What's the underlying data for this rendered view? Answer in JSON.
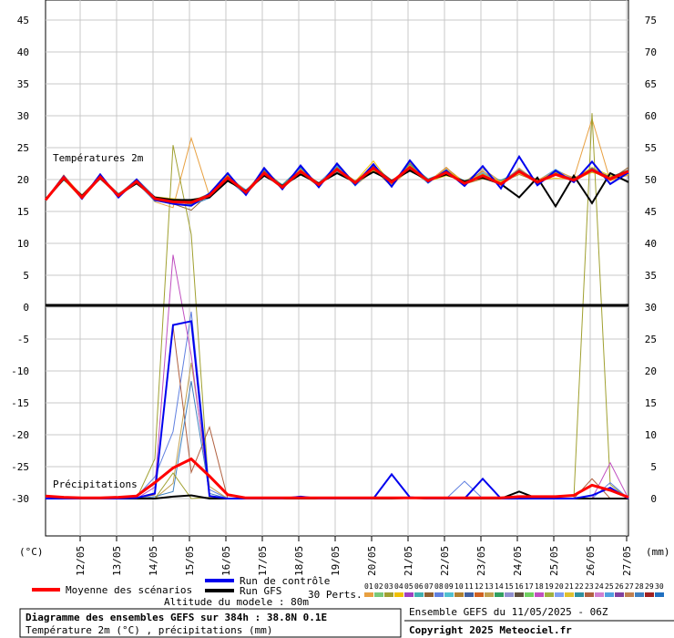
{
  "chart_data": {
    "type": "line",
    "title": "Diagramme des ensembles GEFS sur 384h : 38.8N 0.1E",
    "subtitle": "Température 2m (°C) , précipitations (mm)",
    "panel_labels": {
      "temperature": "Températures 2m",
      "precipitation": "Précipitations"
    },
    "left_axis": {
      "unit": "(°C)",
      "ticks": [
        45,
        40,
        35,
        30,
        25,
        20,
        15,
        10,
        5,
        0,
        -5,
        -10,
        -15,
        -20,
        -25,
        -30
      ],
      "range": [
        -30,
        45
      ]
    },
    "right_axis": {
      "unit": "(mm)",
      "ticks": [
        75,
        70,
        65,
        60,
        55,
        50,
        45,
        40,
        35,
        30,
        25,
        20,
        15,
        10,
        5,
        0
      ],
      "range": [
        0,
        75
      ]
    },
    "x_ticks": [
      "12/05",
      "13/05",
      "14/05",
      "15/05",
      "16/05",
      "17/05",
      "18/05",
      "19/05",
      "20/05",
      "21/05",
      "22/05",
      "23/05",
      "24/05",
      "25/05",
      "26/05",
      "27/05"
    ],
    "legend": {
      "mean": "Moyenne des scénarios",
      "control": "Run de contrôle",
      "gfs": "Run GFS",
      "perts_label": "30 Perts.",
      "perts_numbers": [
        "01",
        "02",
        "03",
        "04",
        "05",
        "06",
        "07",
        "08",
        "09",
        "10",
        "11",
        "12",
        "13",
        "14",
        "15",
        "16",
        "17",
        "18",
        "19",
        "20",
        "21",
        "22",
        "23",
        "24",
        "25",
        "26",
        "27",
        "28",
        "29",
        "30"
      ]
    },
    "altitude": "Altitude du modele : 80m",
    "run_info": "Ensemble GEFS du 11/05/2025 - 06Z",
    "copyright": "Copyright 2025 Meteociel.fr",
    "colors": {
      "mean": "#ff0000",
      "control": "#0000ee",
      "gfs": "#000000",
      "perts": [
        "#e8a040",
        "#78c878",
        "#a0a030",
        "#f0c000",
        "#a040c0",
        "#40b0b0",
        "#906030",
        "#6080e0",
        "#50c0d0",
        "#b08030",
        "#4060a0",
        "#d06020",
        "#c0a050",
        "#30a060",
        "#9090d0",
        "#605040",
        "#70d060",
        "#c050c0",
        "#a0b040",
        "#80a0f0",
        "#e0c030",
        "#3090a0",
        "#b06040",
        "#d080d0",
        "#50a0e0",
        "#8040a0",
        "#c08050",
        "#4080c0",
        "#a02020",
        "#2070c0"
      ]
    },
    "mean_temperature": [
      16.8,
      20.3,
      17.2,
      20.4,
      17.5,
      19.7,
      17.0,
      16.5,
      16.4,
      17.5,
      20.3,
      18.0,
      21.0,
      18.8,
      21.3,
      19.2,
      21.6,
      19.5,
      21.8,
      19.6,
      21.9,
      19.8,
      21.1,
      19.4,
      20.6,
      19.3,
      21.3,
      19.6,
      20.8,
      19.9,
      21.5,
      20.1,
      21.3
    ],
    "control_temperature": [
      16.8,
      20.5,
      17.0,
      20.8,
      17.2,
      20.0,
      16.8,
      16.2,
      15.9,
      17.8,
      21.0,
      17.6,
      21.8,
      18.5,
      22.2,
      18.8,
      22.5,
      19.2,
      22.4,
      18.9,
      23.0,
      19.6,
      21.4,
      19.0,
      22.1,
      18.6,
      23.6,
      19.1,
      21.4,
      19.6,
      22.8,
      19.3,
      21.1
    ],
    "gfs_temperature": [
      16.8,
      20.1,
      17.4,
      20.2,
      17.6,
      19.4,
      17.2,
      16.8,
      16.8,
      17.2,
      19.8,
      18.2,
      20.6,
      19.0,
      20.8,
      19.4,
      21.0,
      19.6,
      21.2,
      19.8,
      21.4,
      19.9,
      20.8,
      19.7,
      20.3,
      19.3,
      17.2,
      20.3,
      15.8,
      20.6,
      16.3,
      21.0,
      19.6
    ],
    "perturbations_temperature": [
      [
        16.8,
        20.7,
        17.0,
        20.9,
        17.2,
        19.9,
        16.5,
        15.6,
        26.5,
        17.4,
        20.9,
        17.7,
        21.9,
        18.6,
        22.1,
        18.9,
        22.6,
        19.4,
        22.4,
        19.1,
        22.7,
        19.6,
        21.8,
        19.6,
        20.6,
        19.3,
        21.8,
        19.6,
        21.5,
        20.2,
        29.5,
        19.8,
        20.7
      ],
      [
        16.8,
        20.2,
        17.5,
        20.1,
        17.8,
        19.5,
        17.3,
        17.0,
        16.7,
        17.2,
        20.0,
        18.1,
        21.6,
        18.9,
        21.4,
        19.3,
        21.2,
        19.7,
        22.9,
        19.2,
        22.0,
        19.7,
        20.6,
        19.8,
        20.9,
        19.5,
        21.1,
        20.0,
        20.2,
        20.1,
        21.9,
        20.6,
        20.8
      ],
      [
        16.8,
        20.5,
        17.1,
        20.4,
        17.6,
        19.6,
        16.7,
        16.2,
        15.2,
        17.8,
        20.6,
        17.7,
        20.8,
        18.6,
        21.1,
        18.9,
        22.3,
        19.1,
        21.7,
        18.9,
        22.1,
        19.6,
        21.9,
        19.3,
        21.4,
        19.1,
        21.5,
        19.9,
        21.1,
        19.8,
        21.8,
        20.0,
        21.9
      ],
      [
        16.8,
        20.4,
        17.3,
        20.6,
        17.3,
        19.8,
        17.0,
        16.6,
        16.9,
        17.4,
        20.5,
        18.3,
        21.2,
        18.9,
        20.9,
        19.3,
        21.9,
        19.7,
        22.2,
        19.3,
        22.6,
        19.9,
        21.0,
        19.3,
        20.1,
        19.5,
        20.8,
        19.7,
        21.4,
        20.2,
        21.3,
        20.3,
        21.4
      ],
      [
        16.8,
        20.1,
        17.4,
        20.6,
        17.7,
        20.0,
        16.9,
        16.3,
        16.5,
        17.6,
        20.1,
        17.9,
        21.2,
        18.5,
        21.6,
        19.0,
        21.8,
        19.1,
        21.3,
        19.5,
        22.1,
        20.0,
        21.3,
        19.6,
        21.7,
        19.7,
        21.6,
        19.4,
        21.0,
        19.7,
        21.3,
        19.9,
        21.2
      ],
      [
        16.8,
        20.3,
        17.2,
        20.3,
        17.4,
        19.7,
        17.1,
        16.8,
        16.2,
        17.3,
        20.7,
        17.9,
        21.4,
        18.7,
        21.6,
        19.4,
        21.4,
        19.3,
        22.1,
        19.9,
        21.6,
        19.5,
        21.4,
        19.1,
        20.9,
        19.2,
        21.3,
        19.7,
        21.0,
        20.1,
        21.7,
        20.4,
        21.5
      ],
      [
        16.8,
        20.6,
        17.0,
        20.2,
        17.5,
        19.9,
        16.8,
        16.4,
        16.6,
        17.7,
        20.8,
        18.1,
        21.5,
        19.1,
        21.5,
        19.1,
        21.8,
        19.8,
        22.0,
        19.4,
        22.3,
        19.8,
        20.8,
        19.5,
        20.9,
        19.6,
        21.4,
        19.3,
        21.2,
        19.7,
        21.5,
        20.0,
        21.1
      ],
      [
        16.8,
        19.9,
        17.6,
        20.5,
        17.8,
        19.6,
        17.1,
        16.6,
        16.1,
        17.9,
        20.2,
        17.8,
        21.0,
        19.2,
        21.9,
        18.8,
        22.1,
        19.2,
        21.6,
        19.6,
        22.4,
        20.1,
        21.2,
        19.8,
        20.5,
        19.9,
        21.2,
        19.5,
        20.7,
        19.9,
        21.4,
        19.9,
        20.9
      ],
      [
        16.8,
        20.4,
        17.3,
        20.7,
        17.3,
        19.5,
        16.6,
        16.9,
        16.3,
        17.5,
        20.4,
        18.4,
        20.8,
        18.7,
        21.2,
        19.5,
        22.2,
        19.0,
        21.9,
        19.5,
        22.0,
        19.4,
        21.6,
        19.2,
        21.1,
        19.3,
        21.0,
        19.8,
        21.6,
        20.0,
        21.2,
        20.2,
        21.0
      ],
      [
        16.8,
        20.2,
        17.2,
        20.4,
        17.6,
        20.1,
        17.3,
        16.2,
        16.0,
        17.1,
        20.0,
        17.6,
        21.6,
        18.6,
        21.7,
        19.2,
        21.3,
        19.4,
        21.5,
        19.7,
        21.8,
        19.9,
        21.1,
        19.5,
        20.6,
        19.4,
        21.6,
        19.6,
        20.9,
        19.8,
        21.8,
        20.1,
        21.4
      ],
      [
        16.8,
        20.7,
        17.4,
        20.1,
        17.4,
        19.4,
        16.9,
        16.5,
        16.4,
        17.6,
        20.9,
        17.9,
        21.1,
        18.9,
        21.0,
        19.3,
        21.6,
        19.5,
        22.3,
        19.2,
        21.5,
        19.6,
        21.9,
        19.1,
        21.3,
        19.6,
        20.9,
        19.9,
        21.3,
        20.3,
        21.6,
        19.8,
        21.2
      ],
      [
        16.8,
        20.0,
        17.0,
        20.3,
        17.3,
        19.7,
        17.2,
        16.6,
        16.6,
        17.3,
        20.6,
        18.2,
        20.9,
        18.7,
        21.6,
        19.1,
        21.7,
        19.6,
        21.4,
        19.5,
        22.2,
        19.7,
        21.5,
        19.6,
        20.8,
        19.6,
        21.1,
        19.5,
        21.0,
        20.0,
        21.1,
        20.4,
        20.8
      ],
      [
        16.8,
        20.3,
        17.6,
        20.5,
        17.7,
        19.8,
        16.7,
        16.7,
        16.6,
        17.8,
        20.3,
        17.8,
        21.3,
        19.0,
        21.3,
        19.5,
        21.5,
        19.3,
        21.8,
        19.4,
        21.9,
        19.7,
        21.4,
        19.4,
        20.7,
        19.3,
        21.3,
        19.7,
        20.9,
        19.9,
        21.5,
        20.0,
        21.2
      ]
    ],
    "mean_precipitation": [
      0.4,
      0.2,
      0.1,
      0.1,
      0.2,
      0.4,
      2.5,
      4.8,
      6.2,
      3.5,
      0.6,
      0.1,
      0.1,
      0.1,
      0.1,
      0.1,
      0.1,
      0.1,
      0.1,
      0.1,
      0.1,
      0.1,
      0.1,
      0.1,
      0.1,
      0.1,
      0.3,
      0.3,
      0.3,
      0.5,
      2.1,
      1.3,
      0.2
    ],
    "control_precipitation": [
      0.0,
      0.0,
      0.0,
      0.0,
      0.0,
      0.1,
      0.8,
      27.2,
      27.8,
      0.4,
      0.0,
      0.0,
      0.0,
      0.0,
      0.3,
      0.0,
      0.0,
      0.0,
      0.0,
      3.8,
      0.2,
      0.0,
      0.0,
      0.0,
      3.1,
      0.0,
      0.0,
      0.0,
      0.0,
      0.0,
      0.5,
      1.7,
      0.0
    ],
    "gfs_precipitation": [
      0.0,
      0.0,
      0.0,
      0.0,
      0.0,
      0.0,
      0.0,
      0.3,
      0.5,
      0.0,
      0.0,
      0.0,
      0.0,
      0.0,
      0.0,
      0.0,
      0.0,
      0.0,
      0.0,
      0.0,
      0.1,
      0.0,
      0.0,
      0.0,
      0.0,
      0.0,
      1.1,
      0.0,
      0.0,
      0.0,
      0.0,
      0.0,
      0.0
    ],
    "perturbations_precipitation": [
      [
        0.3,
        0.0,
        0.0,
        0.0,
        0.0,
        0.0,
        6.2,
        55.4,
        41.4,
        0.0,
        0.0,
        0.0,
        0.0,
        0.0,
        0.0,
        0.0,
        0.0,
        0.0,
        0.0,
        0.0,
        0.0,
        0.0,
        0.0,
        0.0,
        0.0,
        0.0,
        0.0,
        0.0,
        0.0,
        0.0,
        60.4,
        2.2,
        0.0
      ],
      [
        0.0,
        0.0,
        0.0,
        0.0,
        0.0,
        0.3,
        3.4,
        10.5,
        29.3,
        1.4,
        0.0,
        0.0,
        0.0,
        0.0,
        0.0,
        0.0,
        0.0,
        0.0,
        0.0,
        0.0,
        0.0,
        0.0,
        0.0,
        2.7,
        0.0,
        0.0,
        0.0,
        0.0,
        0.0,
        0.0,
        0.0,
        2.5,
        0.0
      ],
      [
        0.0,
        0.0,
        0.0,
        0.0,
        0.0,
        0.0,
        0.0,
        2.4,
        21.3,
        1.9,
        0.0,
        0.0,
        0.0,
        0.0,
        0.0,
        0.0,
        0.0,
        0.0,
        0.0,
        0.0,
        0.0,
        0.0,
        0.0,
        0.0,
        0.0,
        0.0,
        0.0,
        0.0,
        0.0,
        0.0,
        0.0,
        0.0,
        0.0
      ],
      [
        0.0,
        0.0,
        0.0,
        0.0,
        0.0,
        0.0,
        1.8,
        38.2,
        22.4,
        0.3,
        0.0,
        0.0,
        0.0,
        0.0,
        0.0,
        0.0,
        0.0,
        0.0,
        0.0,
        0.0,
        0.0,
        0.0,
        0.0,
        0.0,
        0.0,
        0.0,
        0.0,
        0.0,
        0.0,
        0.0,
        0.0,
        5.6,
        0.0
      ],
      [
        0.0,
        0.0,
        0.0,
        0.0,
        0.0,
        0.0,
        0.6,
        27.0,
        4.1,
        11.2,
        0.0,
        0.0,
        0.0,
        0.0,
        0.0,
        0.0,
        0.0,
        0.0,
        0.0,
        0.0,
        0.0,
        0.0,
        0.0,
        0.0,
        0.0,
        0.0,
        0.0,
        0.0,
        0.0,
        0.0,
        3.1,
        0.0,
        0.0
      ],
      [
        0.0,
        0.0,
        0.0,
        0.0,
        0.0,
        0.0,
        0.3,
        1.1,
        18.4,
        0.8,
        0.0,
        0.0,
        0.0,
        0.0,
        0.0,
        0.0,
        0.0,
        0.0,
        0.0,
        0.0,
        0.0,
        0.0,
        0.0,
        0.0,
        0.0,
        0.0,
        0.0,
        0.0,
        0.0,
        0.0,
        0.0,
        0.0,
        0.0
      ],
      [
        0.0,
        0.0,
        0.0,
        0.0,
        0.0,
        0.0,
        0.0,
        4.0,
        0.0,
        0.2,
        0.0,
        0.0,
        0.0,
        0.0,
        0.0,
        0.0,
        0.0,
        0.0,
        0.0,
        0.0,
        0.0,
        0.0,
        0.0,
        0.0,
        0.0,
        0.0,
        0.0,
        0.0,
        0.0,
        0.0,
        0.0,
        0.0,
        0.0
      ]
    ]
  }
}
